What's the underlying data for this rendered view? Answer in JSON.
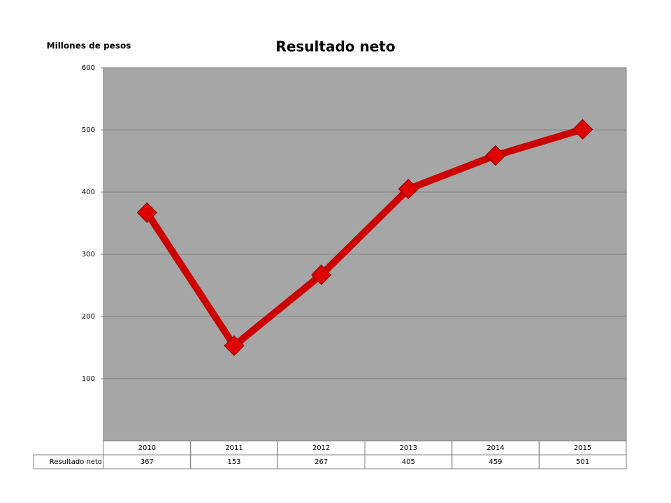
{
  "chart_data": {
    "type": "line",
    "title": "Resultado neto",
    "y_label": "Millones de pesos",
    "categories": [
      "2010",
      "2011",
      "2012",
      "2013",
      "2014",
      "2015"
    ],
    "series": [
      {
        "name": "Resultado neto",
        "color": "#cc0000",
        "values": [
          367,
          153,
          267,
          405,
          459,
          501
        ]
      }
    ],
    "ylim": [
      0,
      600
    ],
    "yticks": [
      100,
      200,
      300,
      400,
      500,
      600
    ],
    "grid": true,
    "data_table": true
  }
}
